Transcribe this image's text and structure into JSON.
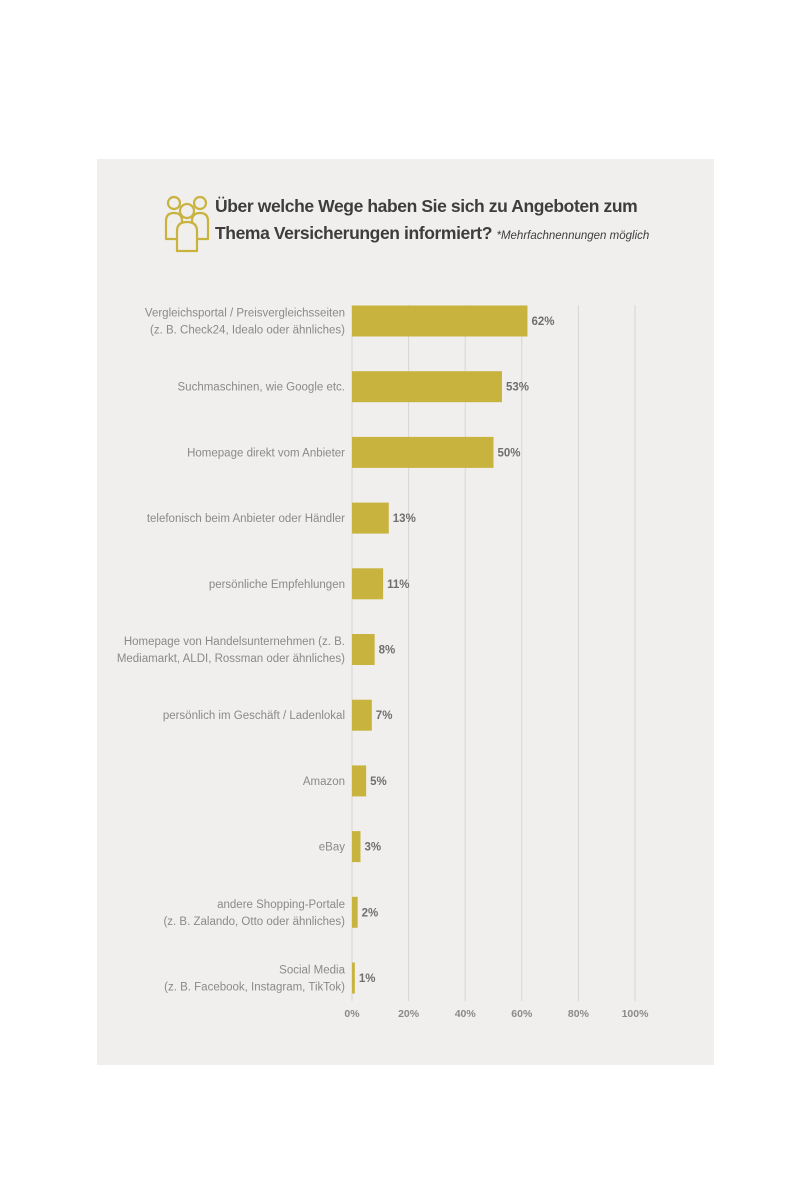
{
  "header": {
    "title": "Über welche Wege haben Sie sich zu Angeboten zum Thema Versicherungen informiert?",
    "note": "*Mehrfachnennungen möglich",
    "icon": "people-group-icon"
  },
  "colors": {
    "accent": "#c8b33f",
    "background": "#f0efed",
    "grid": "#d8d6d2",
    "text": "#8a8a8a"
  },
  "chart_data": {
    "type": "bar",
    "orientation": "horizontal",
    "categories": [
      [
        "Vergleichsportal / Preisvergleichsseiten",
        "(z. B. Check24, Idealo oder ähnliches)"
      ],
      [
        "Suchmaschinen, wie Google etc."
      ],
      [
        "Homepage direkt vom Anbieter"
      ],
      [
        "telefonisch beim Anbieter oder Händler"
      ],
      [
        "persönliche Empfehlungen"
      ],
      [
        "Homepage von Handelsunternehmen (z. B.",
        "Mediamarkt, ALDI, Rossman oder ähnliches)"
      ],
      [
        "persönlich im Geschäft / Ladenlokal"
      ],
      [
        "Amazon"
      ],
      [
        "eBay"
      ],
      [
        "andere Shopping-Portale",
        "(z. B. Zalando, Otto oder ähnliches)"
      ],
      [
        "Social Media",
        "(z. B. Facebook, Instagram, TikTok)"
      ]
    ],
    "values": [
      62,
      53,
      50,
      13,
      11,
      8,
      7,
      5,
      3,
      2,
      1
    ],
    "value_labels": [
      "62%",
      "53%",
      "50%",
      "13%",
      "11%",
      "8%",
      "7%",
      "5%",
      "3%",
      "2%",
      "1%"
    ],
    "xlim": [
      0,
      100
    ],
    "xticks": [
      0,
      20,
      40,
      60,
      80,
      100
    ],
    "xtick_labels": [
      "0%",
      "20%",
      "40%",
      "60%",
      "80%",
      "100%"
    ],
    "grid": true
  }
}
